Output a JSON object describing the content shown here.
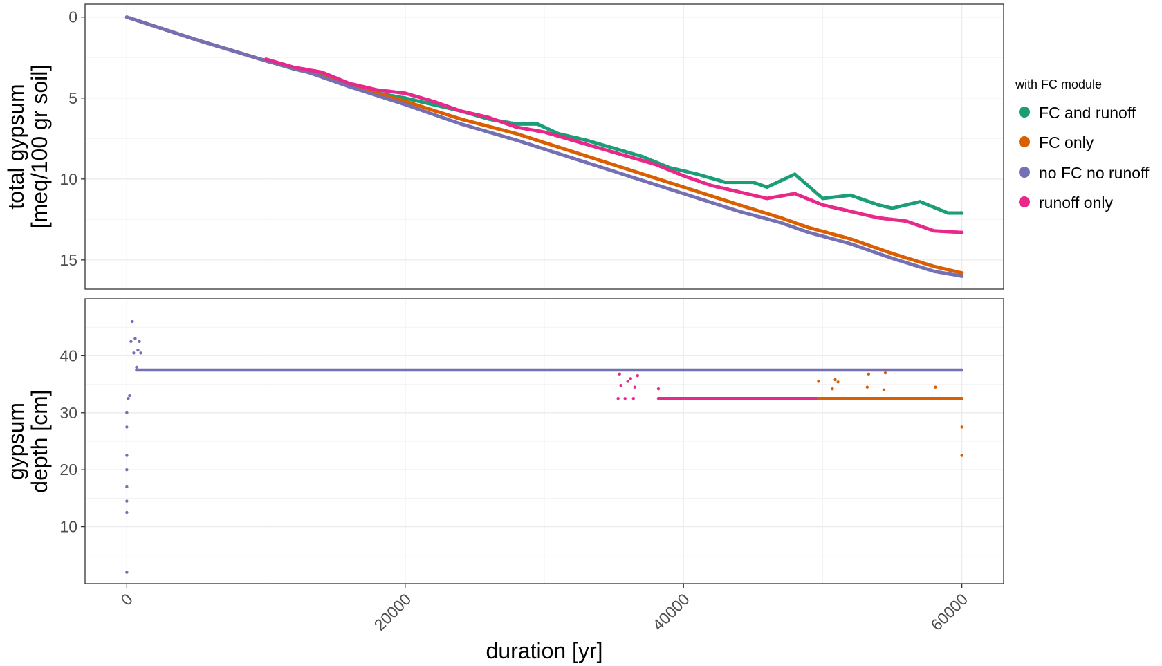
{
  "chart_data": [
    {
      "type": "scatter",
      "panel": "top",
      "ylabel_lines": [
        "total gypsum",
        "[meq/100 gr soil]"
      ],
      "xlim": [
        -3000,
        63000
      ],
      "ylim": [
        -0.8,
        16.8
      ],
      "y_ticks": [
        0,
        5,
        10,
        15
      ],
      "x_ticks": [
        0,
        20000,
        40000,
        60000
      ],
      "grid": true,
      "series": [
        {
          "name": "FC and runoff",
          "color": "#1b9e77",
          "x": [
            0,
            5000,
            10000,
            12000,
            14000,
            16000,
            18000,
            20000,
            22000,
            24000,
            26000,
            28000,
            29500,
            31000,
            33000,
            35000,
            37000,
            39000,
            41000,
            43000,
            45000,
            46000,
            48000,
            50000,
            52000,
            54000,
            55000,
            57000,
            59000,
            60000
          ],
          "y": [
            0,
            1.4,
            2.7,
            3.2,
            3.6,
            4.3,
            4.7,
            5.0,
            5.4,
            5.8,
            6.3,
            6.6,
            6.6,
            7.2,
            7.6,
            8.1,
            8.6,
            9.3,
            9.7,
            10.2,
            10.2,
            10.5,
            9.7,
            11.2,
            11.0,
            11.6,
            11.8,
            11.4,
            12.1,
            12.1
          ]
        },
        {
          "name": "FC only",
          "color": "#d95f02",
          "x": [
            0,
            5000,
            10000,
            13000,
            16000,
            20000,
            24000,
            28000,
            32000,
            36000,
            40000,
            44000,
            47000,
            49000,
            52000,
            55000,
            58000,
            60000
          ],
          "y": [
            0,
            1.4,
            2.7,
            3.4,
            4.2,
            5.2,
            6.3,
            7.2,
            8.3,
            9.4,
            10.5,
            11.6,
            12.4,
            13.0,
            13.7,
            14.6,
            15.4,
            15.8
          ]
        },
        {
          "name": "no FC no runoff",
          "color": "#7570b3",
          "x": [
            0,
            5000,
            10000,
            13000,
            16000,
            20000,
            24000,
            28000,
            32000,
            36000,
            40000,
            44000,
            47000,
            49000,
            52000,
            55000,
            58000,
            60000
          ],
          "y": [
            0,
            1.4,
            2.7,
            3.4,
            4.3,
            5.4,
            6.6,
            7.6,
            8.7,
            9.8,
            10.9,
            12.0,
            12.7,
            13.3,
            14.0,
            14.9,
            15.7,
            16.0
          ]
        },
        {
          "name": "runoff only",
          "color": "#e7298a",
          "x": [
            10000,
            12000,
            14000,
            16000,
            18000,
            20000,
            22000,
            24000,
            26000,
            28000,
            30000,
            32000,
            34000,
            36000,
            38000,
            40000,
            42000,
            44000,
            46000,
            48000,
            50000,
            52000,
            54000,
            56000,
            58000,
            60000
          ],
          "y": [
            2.6,
            3.1,
            3.4,
            4.1,
            4.5,
            4.7,
            5.2,
            5.8,
            6.2,
            6.8,
            7.1,
            7.6,
            8.1,
            8.6,
            9.1,
            9.8,
            10.4,
            10.8,
            11.2,
            10.9,
            11.6,
            12.0,
            12.4,
            12.6,
            13.2,
            13.3
          ]
        }
      ]
    },
    {
      "type": "scatter",
      "panel": "bottom",
      "ylabel_lines": [
        "gypsum",
        "depth [cm]"
      ],
      "xlabel": "duration [yr]",
      "xlim": [
        -3000,
        63000
      ],
      "ylim": [
        50,
        0
      ],
      "y_ticks": [
        10,
        20,
        30,
        40
      ],
      "x_ticks": [
        0,
        20000,
        40000,
        60000
      ],
      "grid": true,
      "series": [
        {
          "name": "FC and runoff",
          "color": "#1b9e77",
          "x": [],
          "y": []
        },
        {
          "name": "FC only",
          "color": "#d95f02",
          "x": [
            49700,
            50700,
            50900,
            51100,
            53200,
            53300,
            54400,
            54500,
            58100,
            60000,
            60000,
            60000
          ],
          "y": [
            35.5,
            34.2,
            35.8,
            35.4,
            34.5,
            36.8,
            34.0,
            37.0,
            34.5,
            22.5,
            27.5,
            32.5
          ]
        },
        {
          "name": "no FC no runoff",
          "color": "#7570b3",
          "x": [
            0,
            0,
            0,
            0,
            0,
            0,
            0,
            0,
            100,
            200,
            300,
            400,
            500,
            600,
            700,
            800,
            900,
            1000,
            2100
          ],
          "y": [
            2.0,
            12.5,
            14.5,
            17.0,
            20.0,
            22.5,
            27.5,
            30.0,
            32.5,
            33.0,
            42.5,
            46.0,
            40.5,
            43.0,
            38.0,
            41.0,
            42.5,
            40.5,
            37.5
          ]
        },
        {
          "name": "runoff only",
          "color": "#e7298a",
          "x": [
            35300,
            35400,
            35500,
            35800,
            36000,
            36200,
            36400,
            36500,
            36700,
            38200
          ],
          "y": [
            32.5,
            36.8,
            34.8,
            32.5,
            35.5,
            36.0,
            32.5,
            34.5,
            36.5,
            34.2
          ]
        }
      ],
      "segments": [
        {
          "series": "no FC no runoff",
          "color": "#7570b3",
          "x": [
            700,
            60000
          ],
          "y": 37.5
        },
        {
          "series": "runoff only",
          "color": "#e7298a",
          "x": [
            38200,
            54500
          ],
          "y": 32.5
        },
        {
          "series": "FC only",
          "color": "#d95f02",
          "x": [
            49700,
            60000
          ],
          "y": 32.5
        }
      ]
    }
  ],
  "legend": {
    "title": "with FC module",
    "items": [
      {
        "label": "FC and runoff",
        "color": "#1b9e77"
      },
      {
        "label": "FC only",
        "color": "#d95f02"
      },
      {
        "label": "no FC no runoff",
        "color": "#7570b3"
      },
      {
        "label": "runoff only",
        "color": "#e7298a"
      }
    ]
  }
}
